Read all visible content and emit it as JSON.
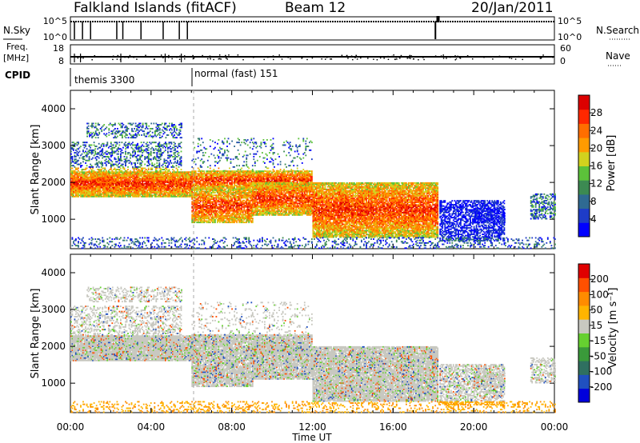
{
  "header": {
    "station": "Falkland Islands (fitACF)",
    "beam": "Beam 12",
    "date": "20/Jan/2011"
  },
  "side_labels": {
    "nsky": "N.Sky",
    "freq_line1": "Freq.",
    "freq_line2": "[MHz]",
    "cpid": "CPID",
    "nsearch": "N.Search",
    "nave": "Nave"
  },
  "chart_data": [
    {
      "type": "line",
      "name_label": "N.Sky / N.Search",
      "left_ticks": [
        "10^5",
        "10^0"
      ],
      "right_ticks": [
        "10^5",
        "10^0"
      ]
    },
    {
      "type": "line",
      "left_ticks": [
        "18",
        "8"
      ],
      "right_ticks": [
        "60",
        "0"
      ],
      "ylim_left": [
        8,
        18
      ],
      "ylim_right": [
        0,
        60
      ]
    },
    {
      "type": "table",
      "segments": [
        {
          "label": "themis 3300",
          "start_hour": 0
        },
        {
          "label": "normal (fast) 151",
          "start_hour": 6
        }
      ]
    },
    {
      "type": "heatmap",
      "ylabel": "Slant Range [km]",
      "y_ticks": [
        "1000",
        "2000",
        "3000",
        "4000"
      ],
      "ylim": [
        200,
        4500
      ],
      "xlim": [
        0,
        24
      ],
      "colorbar": {
        "label": "Power [dB]",
        "ticks": [
          "4",
          "8",
          "12",
          "16",
          "20",
          "24",
          "28"
        ],
        "colors": [
          "#0000ff",
          "#1e3cc8",
          "#2f6a92",
          "#3c8a52",
          "#5cc23a",
          "#d2d21e",
          "#ff9b00",
          "#ff6e00",
          "#ff2800",
          "#dc0000"
        ]
      }
    },
    {
      "type": "heatmap",
      "ylabel": "Slant Range [km]",
      "y_ticks": [
        "1000",
        "2000",
        "3000",
        "4000"
      ],
      "ylim": [
        200,
        4500
      ],
      "xlim": [
        0,
        24
      ],
      "colorbar": {
        "label": "Velocity [m s⁻¹]",
        "ticks": [
          "200",
          "100",
          "50",
          "15",
          "-15",
          "-50",
          "-100",
          "-200"
        ],
        "colors": [
          "#0000dc",
          "#2050c0",
          "#2f7060",
          "#3a9a3a",
          "#66d030",
          "#c8c8c0",
          "#ffb400",
          "#ff8c00",
          "#ff5000",
          "#e00000"
        ]
      }
    }
  ],
  "x_axis": {
    "ticks": [
      "00:00",
      "04:00",
      "08:00",
      "12:00",
      "16:00",
      "20:00",
      "00:00"
    ],
    "label": "Time UT"
  }
}
